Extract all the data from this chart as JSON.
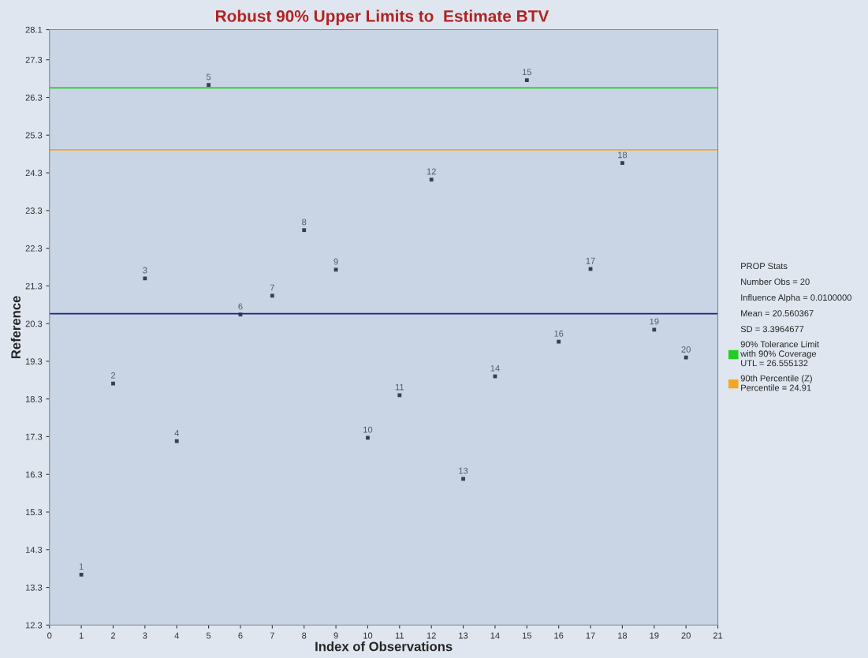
{
  "chart_data": {
    "type": "scatter",
    "title": "Robust 90% Upper Limits to  Estimate BTV",
    "xlabel": "Index of Observations",
    "ylabel": "Reference",
    "x": [
      1,
      2,
      3,
      4,
      5,
      6,
      7,
      8,
      9,
      10,
      11,
      12,
      13,
      14,
      15,
      16,
      17,
      18,
      19,
      20
    ],
    "series": [
      {
        "color": "#3a3f4a",
        "values": [
          13.64,
          18.71,
          21.5,
          17.18,
          26.63,
          20.54,
          21.04,
          22.78,
          21.73,
          17.27,
          18.4,
          24.12,
          16.18,
          18.9,
          26.76,
          19.82,
          21.75,
          24.56,
          20.14,
          19.4
        ]
      }
    ],
    "marker": "square",
    "xlim": [
      0,
      21
    ],
    "xticks": [
      0,
      1,
      2,
      3,
      4,
      5,
      6,
      7,
      8,
      9,
      10,
      11,
      12,
      13,
      14,
      15,
      16,
      17,
      18,
      19,
      20,
      21
    ],
    "ylim": [
      12.3,
      28.1
    ],
    "yticks": [
      12.3,
      13.3,
      14.3,
      15.3,
      16.3,
      17.3,
      18.3,
      19.3,
      20.3,
      21.3,
      22.3,
      23.3,
      24.3,
      25.3,
      26.3,
      27.3,
      28.1
    ],
    "grid": false,
    "legend": "right",
    "annotations": [
      "PROP Stats",
      "Number Obs = 20",
      "Influence Alpha = 0.0100000",
      "Mean = 20.560367",
      "SD = 3.3964677",
      {
        "text": "1",
        "x": 1,
        "y": 13.64
      },
      {
        "text": "2",
        "x": 2,
        "y": 18.71
      },
      {
        "text": "3",
        "x": 3,
        "y": 21.5
      },
      {
        "text": "4",
        "x": 4,
        "y": 17.18
      },
      {
        "text": "5",
        "x": 5,
        "y": 26.63
      },
      {
        "text": "6",
        "x": 6,
        "y": 20.54
      },
      {
        "text": "7",
        "x": 7,
        "y": 21.04
      },
      {
        "text": "8",
        "x": 8,
        "y": 22.78
      },
      {
        "text": "9",
        "x": 9,
        "y": 21.73
      },
      {
        "text": "10",
        "x": 10,
        "y": 17.27
      },
      {
        "text": "11",
        "x": 11,
        "y": 18.4
      },
      {
        "text": "12",
        "x": 12,
        "y": 24.12
      },
      {
        "text": "13",
        "x": 13,
        "y": 16.18
      },
      {
        "text": "14",
        "x": 14,
        "y": 18.9
      },
      {
        "text": "15",
        "x": 15,
        "y": 26.76
      },
      {
        "text": "16",
        "x": 16,
        "y": 19.82
      },
      {
        "text": "17",
        "x": 17,
        "y": 21.75
      },
      {
        "text": "18",
        "x": 18,
        "y": 24.56
      },
      {
        "text": "19",
        "x": 19,
        "y": 20.14
      },
      {
        "text": "20",
        "x": 20,
        "y": 19.4
      }
    ],
    "ref_lines": [
      {
        "axis": "y",
        "value": 26.555132,
        "label": "90% Tolerance Limit\nwith 90% Coverage\nUTL = 26.555132",
        "color": "#22cc22"
      },
      {
        "axis": "y",
        "value": 24.91,
        "label": "90th Percentile (Z)\nPercentile = 24.91",
        "color": "#f5a623"
      },
      {
        "axis": "y",
        "value": 20.560367,
        "color": "#1a237e"
      }
    ]
  }
}
